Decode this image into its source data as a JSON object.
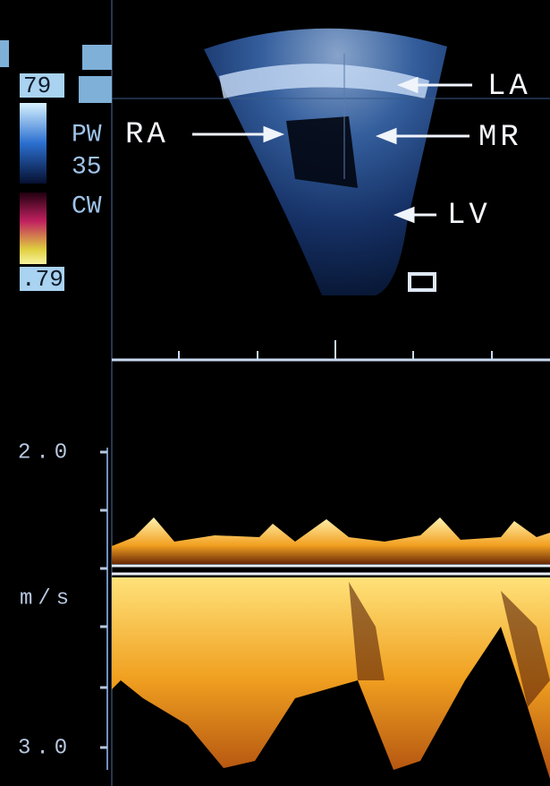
{
  "sidebar": {
    "scale_top": "79",
    "mode_1": "PW",
    "depth": "35",
    "mode_2": "CW",
    "scale_bottom": ".79"
  },
  "anatomy_labels": [
    "RA",
    "LA",
    "MR",
    "LV"
  ],
  "doppler_axis": {
    "upper": "2.0",
    "unit": "m/s",
    "lower": "3.0"
  }
}
